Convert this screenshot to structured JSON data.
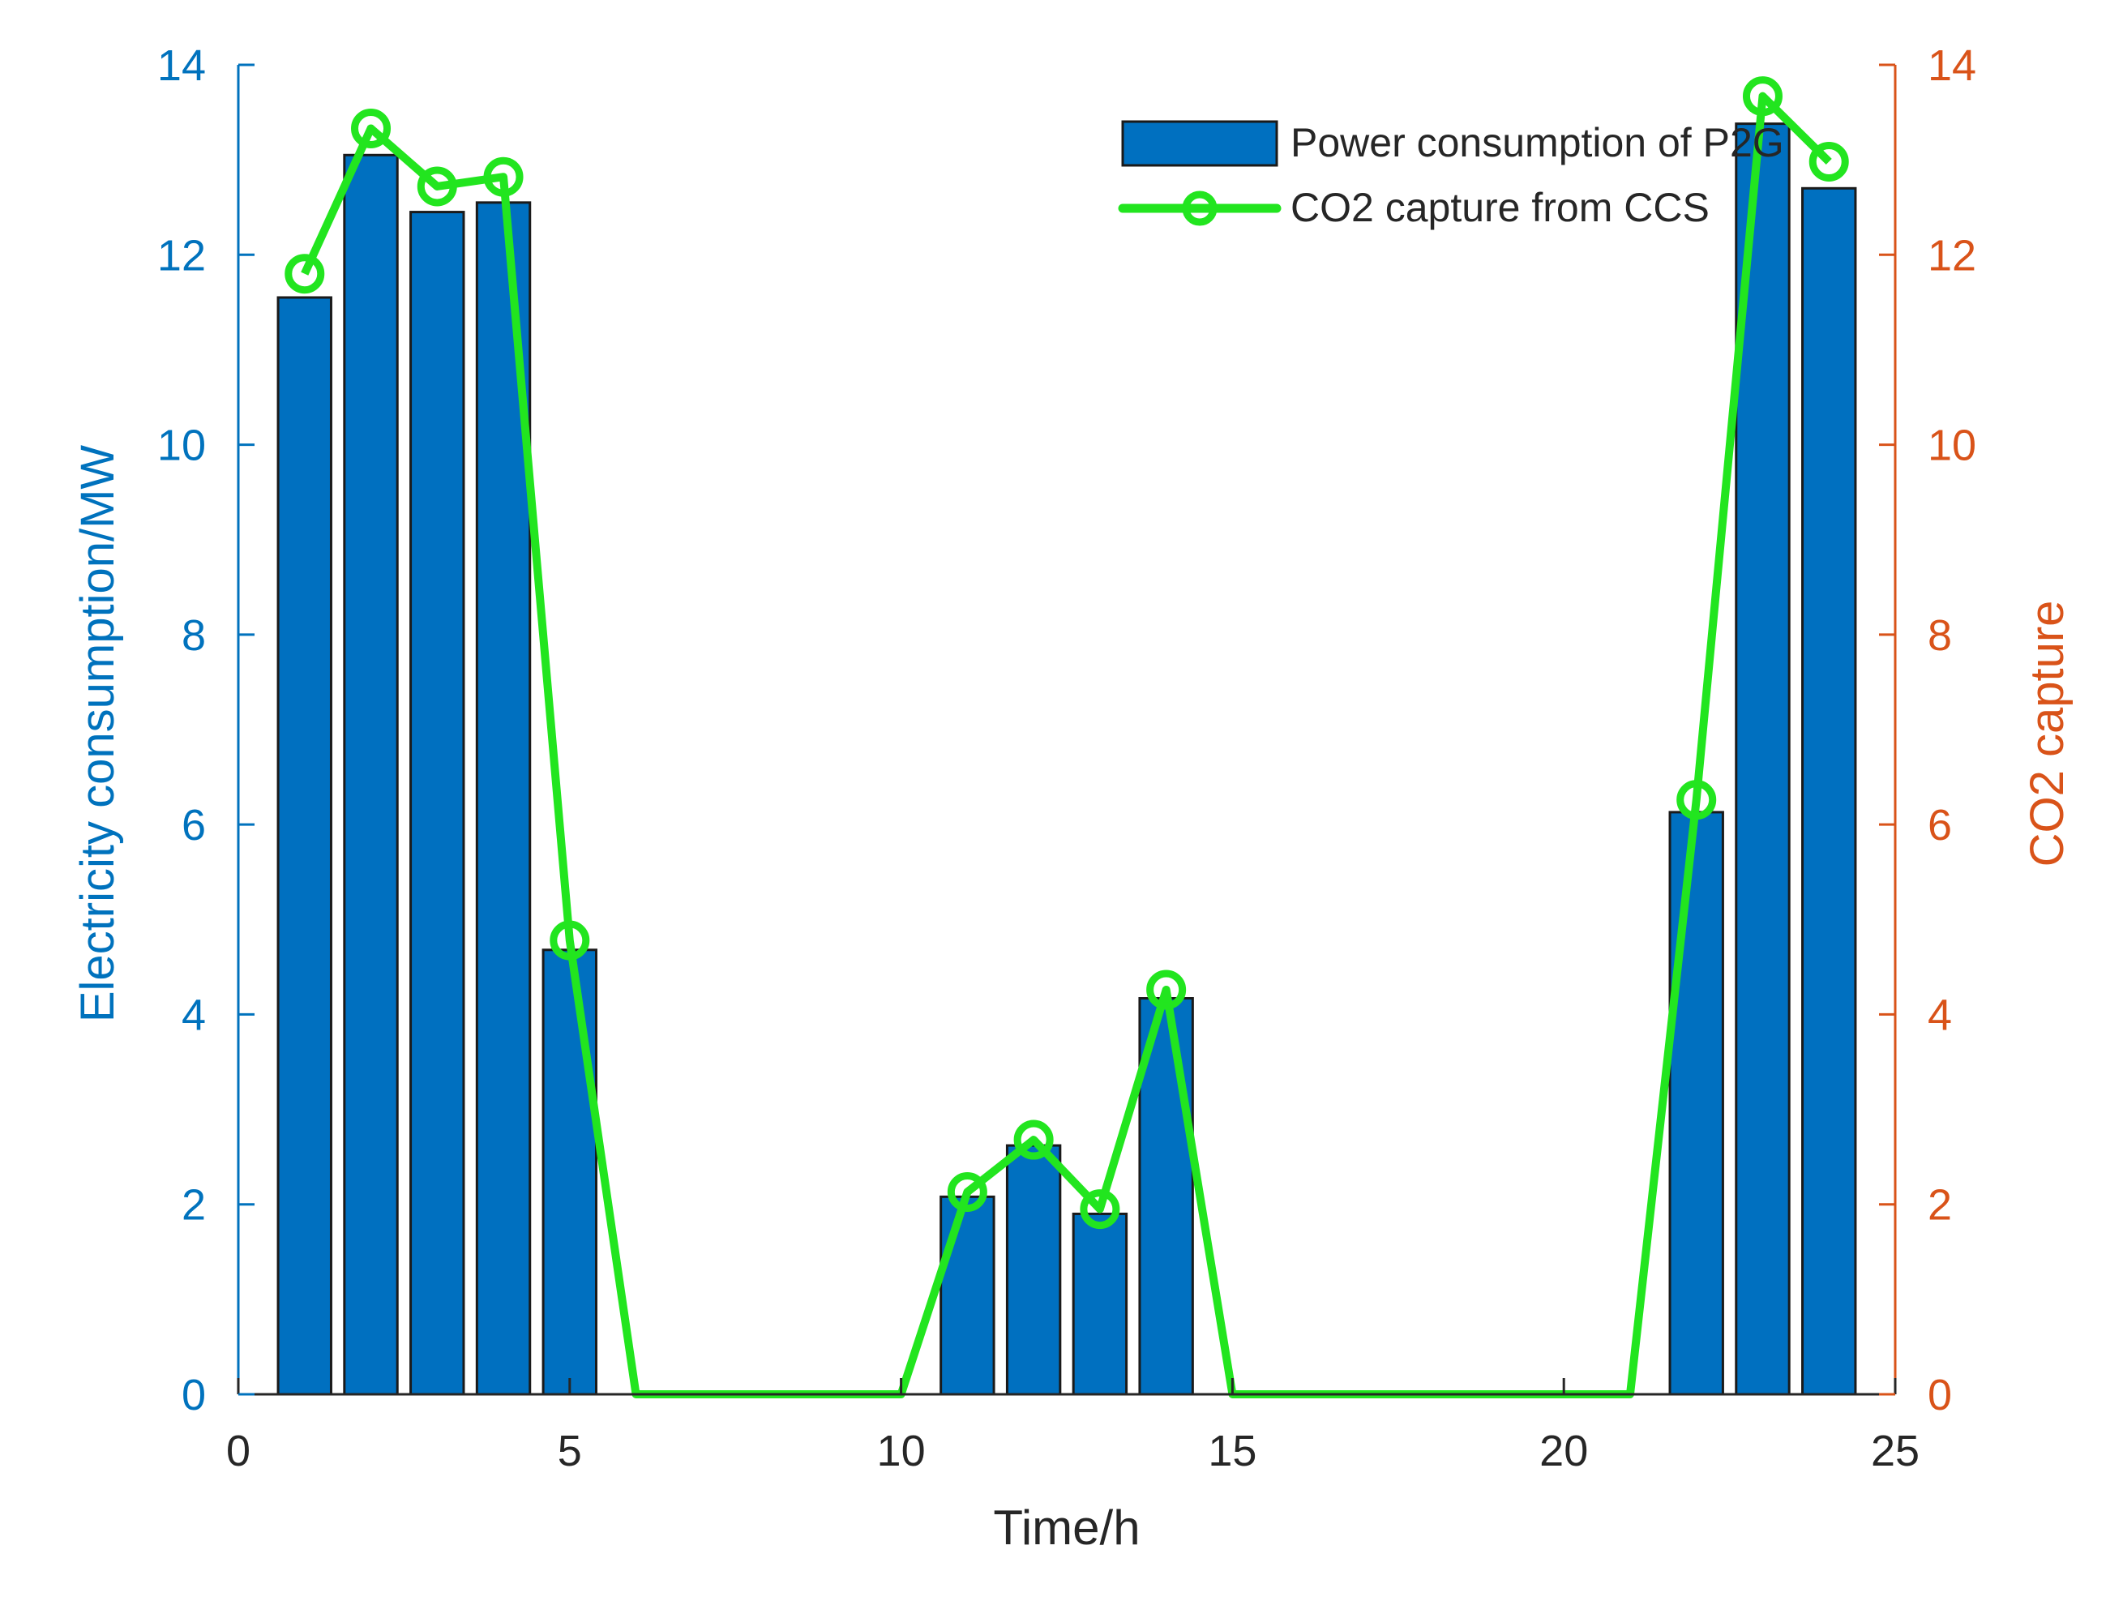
{
  "chart_data": {
    "type": "bar",
    "title": "",
    "xlabel": "Time/h",
    "ylabel_left": "Electricity consumption/MW",
    "ylabel_right": "CO2 capture",
    "xlim": [
      0,
      25
    ],
    "ylim_left": [
      0,
      14
    ],
    "ylim_right": [
      0,
      14
    ],
    "x_ticks": [
      "0",
      "5",
      "10",
      "15",
      "20",
      "25"
    ],
    "y_ticks_left": [
      "0",
      "2",
      "4",
      "6",
      "8",
      "10",
      "12",
      "14"
    ],
    "y_ticks_right": [
      "0",
      "2",
      "4",
      "6",
      "8",
      "10",
      "12",
      "14"
    ],
    "grid": false,
    "legend_position": "top-right",
    "colors": {
      "bar_fill": "#0070c0",
      "bar_edge": "#1a1a1a",
      "line": "#22e51f",
      "left_axis": "#0072bd",
      "right_axis": "#d95319",
      "x_axis": "#262626"
    },
    "x": [
      1,
      2,
      3,
      4,
      5,
      6,
      7,
      8,
      9,
      10,
      11,
      12,
      13,
      14,
      15,
      16,
      17,
      18,
      19,
      20,
      21,
      22,
      23,
      24
    ],
    "series": [
      {
        "name": "Power consumption of P2G",
        "kind": "bar",
        "axis": "left",
        "values": [
          11.55,
          13.05,
          12.45,
          12.55,
          4.68,
          0,
          0,
          0,
          0,
          0,
          2.08,
          2.62,
          1.9,
          4.17,
          0,
          0,
          0,
          0,
          0,
          0,
          0,
          6.13,
          13.38,
          12.7
        ]
      },
      {
        "name": "CO2 capture from CCS",
        "kind": "line",
        "axis": "right",
        "values": [
          11.8,
          13.33,
          12.72,
          12.82,
          4.78,
          0,
          0,
          0,
          0,
          0,
          2.13,
          2.68,
          1.95,
          4.26,
          0,
          0,
          0,
          0,
          0,
          0,
          0,
          6.26,
          13.67,
          12.98
        ]
      }
    ]
  }
}
